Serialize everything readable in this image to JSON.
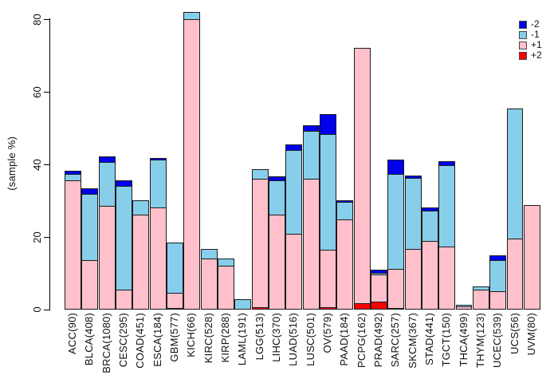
{
  "figure": {
    "background": "#ffffff"
  },
  "y_axis": {
    "label": "(sample %)",
    "ticks": [
      0,
      20,
      40,
      60,
      80
    ]
  },
  "legend": {
    "position": "top-right",
    "entries": [
      {
        "label": "-2",
        "color": "#0000ee"
      },
      {
        "label": "-1",
        "color": "#87ceeb"
      },
      {
        "label": "+1",
        "color": "#ffc0cb"
      },
      {
        "label": "+2",
        "color": "#ff0000"
      }
    ]
  },
  "chart_data": {
    "type": "bar",
    "stacked": true,
    "title": "",
    "xlabel": "",
    "ylabel": "(sample %)",
    "ylim": [
      0,
      80
    ],
    "grid": false,
    "legend_position": "top-right",
    "stack_order_top_to_bottom": [
      "-2",
      "-1",
      "+1",
      "+2"
    ],
    "categories": [
      "ACC(90)",
      "BLCA(408)",
      "BRCA(1080)",
      "CESC(295)",
      "COAD(451)",
      "ESCA(184)",
      "GBM(577)",
      "KICH(66)",
      "KIRC(528)",
      "KIRP(288)",
      "LAML(191)",
      "LGG(513)",
      "LIHC(370)",
      "LUAD(516)",
      "LUSC(501)",
      "OV(579)",
      "PAAD(184)",
      "PCPG(162)",
      "PRAD(492)",
      "SARC(257)",
      "SKCM(367)",
      "STAD(441)",
      "TGCT(150)",
      "THCA(499)",
      "THYM(123)",
      "UCEC(539)",
      "UCS(56)",
      "UVM(80)"
    ],
    "series": [
      {
        "name": "-2",
        "color": "#0000ee",
        "values": [
          1.2,
          1.8,
          1.8,
          1.6,
          0,
          0.7,
          0,
          0,
          0,
          0,
          0,
          0,
          1.3,
          1.8,
          1.8,
          5.6,
          0.7,
          0,
          1.2,
          4.2,
          0.9,
          1.0,
          1.3,
          0,
          0,
          1.6,
          0,
          0
        ]
      },
      {
        "name": "-1",
        "color": "#87ceeb",
        "values": [
          2.0,
          18.3,
          12.4,
          29.0,
          4.2,
          13.4,
          13.9,
          2.3,
          3.0,
          2.1,
          2.9,
          2.9,
          9.7,
          23.2,
          13.4,
          32.1,
          5.0,
          0,
          0.7,
          26.2,
          19.8,
          8.7,
          22.7,
          0.7,
          1.0,
          8.8,
          36.0,
          0
        ]
      },
      {
        "name": "+1",
        "color": "#ffc0cb",
        "values": [
          35.5,
          13.7,
          28.5,
          5.4,
          26.1,
          28.2,
          4.4,
          80.0,
          14.0,
          12.1,
          0,
          35.5,
          26.1,
          20.9,
          36.0,
          16.1,
          24.8,
          70.5,
          7.7,
          11.0,
          16.7,
          18.8,
          17.3,
          0.9,
          5.5,
          5.1,
          19.5,
          28.7
        ]
      },
      {
        "name": "+2",
        "color": "#ff0000",
        "values": [
          0,
          0,
          0,
          0,
          0,
          0,
          0.4,
          0,
          0,
          0,
          0,
          0.7,
          0,
          0,
          0,
          0.7,
          0,
          1.8,
          2.1,
          0.4,
          0,
          0,
          0,
          0,
          0,
          0,
          0,
          0
        ]
      }
    ]
  }
}
